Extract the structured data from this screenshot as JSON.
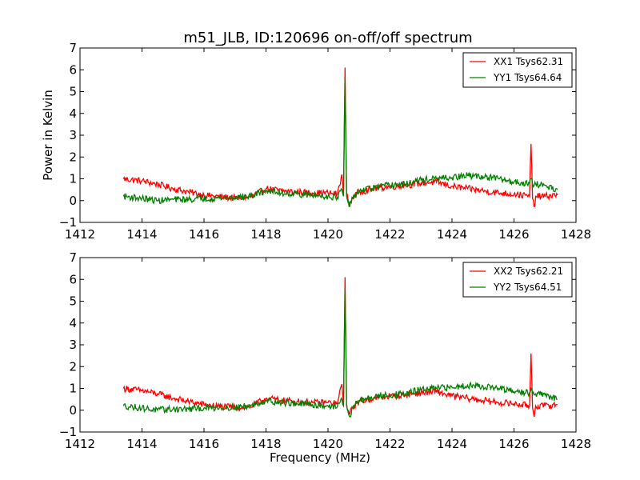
{
  "figure": {
    "title": "m51_JLB, ID:120696 on-off/off spectrum"
  },
  "chart_data": [
    {
      "type": "line",
      "title": "m51_JLB, ID:120696 on-off/off spectrum",
      "xlabel": "",
      "ylabel": "Power in Kelvin",
      "xlim": [
        1412,
        1428
      ],
      "ylim": [
        -1,
        7
      ],
      "xticks": [
        "1412",
        "1414",
        "1416",
        "1418",
        "1420",
        "1422",
        "1424",
        "1426",
        "1428"
      ],
      "yticks": [
        "−1",
        "0",
        "1",
        "2",
        "3",
        "4",
        "5",
        "6",
        "7"
      ],
      "grid": false,
      "legend_position": "top-right",
      "series": [
        {
          "name": "XX1 Tsys62.31",
          "color": "#ff0000",
          "x": [
            1413.4,
            1414.0,
            1414.5,
            1415.0,
            1415.5,
            1416.0,
            1416.5,
            1417.0,
            1417.5,
            1418.0,
            1418.5,
            1419.0,
            1419.5,
            1420.0,
            1420.3,
            1420.45,
            1420.5,
            1420.55,
            1420.6,
            1420.65,
            1420.7,
            1420.8,
            1421.0,
            1421.5,
            1422.0,
            1422.5,
            1423.0,
            1423.5,
            1424.0,
            1424.5,
            1425.0,
            1425.5,
            1426.0,
            1426.5,
            1426.55,
            1426.6,
            1426.65,
            1426.7,
            1427.0,
            1427.4
          ],
          "y": [
            1.0,
            0.9,
            0.75,
            0.55,
            0.4,
            0.25,
            0.18,
            0.12,
            0.15,
            0.55,
            0.45,
            0.4,
            0.35,
            0.35,
            0.3,
            1.2,
            0.2,
            6.1,
            0.3,
            0.0,
            -0.2,
            0.15,
            0.4,
            0.55,
            0.65,
            0.7,
            0.8,
            0.85,
            0.65,
            0.55,
            0.45,
            0.35,
            0.3,
            0.2,
            2.6,
            0.1,
            -0.3,
            0.2,
            0.2,
            0.25
          ]
        },
        {
          "name": "YY1 Tsys64.64",
          "color": "#008000",
          "x": [
            1413.4,
            1414.0,
            1414.5,
            1415.0,
            1415.5,
            1416.0,
            1416.5,
            1417.0,
            1417.5,
            1418.0,
            1418.5,
            1419.0,
            1419.5,
            1420.0,
            1420.3,
            1420.45,
            1420.5,
            1420.55,
            1420.6,
            1420.65,
            1420.7,
            1420.8,
            1421.0,
            1421.5,
            1422.0,
            1422.5,
            1423.0,
            1423.5,
            1424.0,
            1424.5,
            1425.0,
            1425.5,
            1426.0,
            1426.5,
            1426.55,
            1426.6,
            1426.65,
            1426.7,
            1427.0,
            1427.4
          ],
          "y": [
            0.2,
            0.1,
            0.0,
            0.05,
            0.05,
            0.1,
            0.12,
            0.15,
            0.2,
            0.45,
            0.35,
            0.3,
            0.25,
            0.2,
            0.15,
            0.5,
            0.2,
            5.6,
            0.2,
            -0.1,
            -0.3,
            0.1,
            0.45,
            0.6,
            0.7,
            0.75,
            0.95,
            1.0,
            1.05,
            1.15,
            1.1,
            1.0,
            0.85,
            0.8,
            1.0,
            0.75,
            0.7,
            0.75,
            0.7,
            0.5
          ]
        }
      ]
    },
    {
      "type": "line",
      "title": "",
      "xlabel": "Frequency (MHz)",
      "ylabel": "",
      "xlim": [
        1412,
        1428
      ],
      "ylim": [
        -1,
        7
      ],
      "xticks": [
        "1412",
        "1414",
        "1416",
        "1418",
        "1420",
        "1422",
        "1424",
        "1426",
        "1428"
      ],
      "yticks": [
        "−1",
        "0",
        "1",
        "2",
        "3",
        "4",
        "5",
        "6",
        "7"
      ],
      "grid": false,
      "legend_position": "top-right",
      "series": [
        {
          "name": "XX2 Tsys62.21",
          "color": "#ff0000",
          "x": [
            1413.4,
            1414.0,
            1414.5,
            1415.0,
            1415.5,
            1416.0,
            1416.5,
            1417.0,
            1417.5,
            1418.0,
            1418.5,
            1419.0,
            1419.5,
            1420.0,
            1420.3,
            1420.45,
            1420.5,
            1420.55,
            1420.6,
            1420.65,
            1420.7,
            1420.8,
            1421.0,
            1421.5,
            1422.0,
            1422.5,
            1423.0,
            1423.5,
            1424.0,
            1424.5,
            1425.0,
            1425.5,
            1426.0,
            1426.5,
            1426.55,
            1426.6,
            1426.65,
            1426.7,
            1427.0,
            1427.4
          ],
          "y": [
            1.0,
            0.9,
            0.75,
            0.55,
            0.4,
            0.25,
            0.18,
            0.12,
            0.15,
            0.55,
            0.45,
            0.4,
            0.35,
            0.35,
            0.3,
            1.2,
            0.2,
            6.1,
            0.3,
            0.0,
            -0.2,
            0.15,
            0.4,
            0.55,
            0.65,
            0.7,
            0.8,
            0.85,
            0.65,
            0.55,
            0.45,
            0.35,
            0.3,
            0.2,
            2.6,
            0.1,
            -0.3,
            0.2,
            0.2,
            0.25
          ]
        },
        {
          "name": "YY2 Tsys64.51",
          "color": "#008000",
          "x": [
            1413.4,
            1414.0,
            1414.5,
            1415.0,
            1415.5,
            1416.0,
            1416.5,
            1417.0,
            1417.5,
            1418.0,
            1418.5,
            1419.0,
            1419.5,
            1420.0,
            1420.3,
            1420.45,
            1420.5,
            1420.55,
            1420.6,
            1420.65,
            1420.7,
            1420.8,
            1421.0,
            1421.5,
            1422.0,
            1422.5,
            1423.0,
            1423.5,
            1424.0,
            1424.5,
            1425.0,
            1425.5,
            1426.0,
            1426.5,
            1426.55,
            1426.6,
            1426.65,
            1426.7,
            1427.0,
            1427.4
          ],
          "y": [
            0.2,
            0.1,
            0.0,
            0.05,
            0.05,
            0.1,
            0.12,
            0.15,
            0.2,
            0.45,
            0.35,
            0.3,
            0.25,
            0.2,
            0.15,
            0.5,
            0.2,
            5.6,
            0.2,
            -0.1,
            -0.3,
            0.1,
            0.45,
            0.6,
            0.7,
            0.75,
            0.95,
            1.0,
            1.05,
            1.15,
            1.1,
            1.0,
            0.85,
            0.8,
            1.0,
            0.75,
            0.7,
            0.75,
            0.7,
            0.5
          ]
        }
      ]
    }
  ]
}
